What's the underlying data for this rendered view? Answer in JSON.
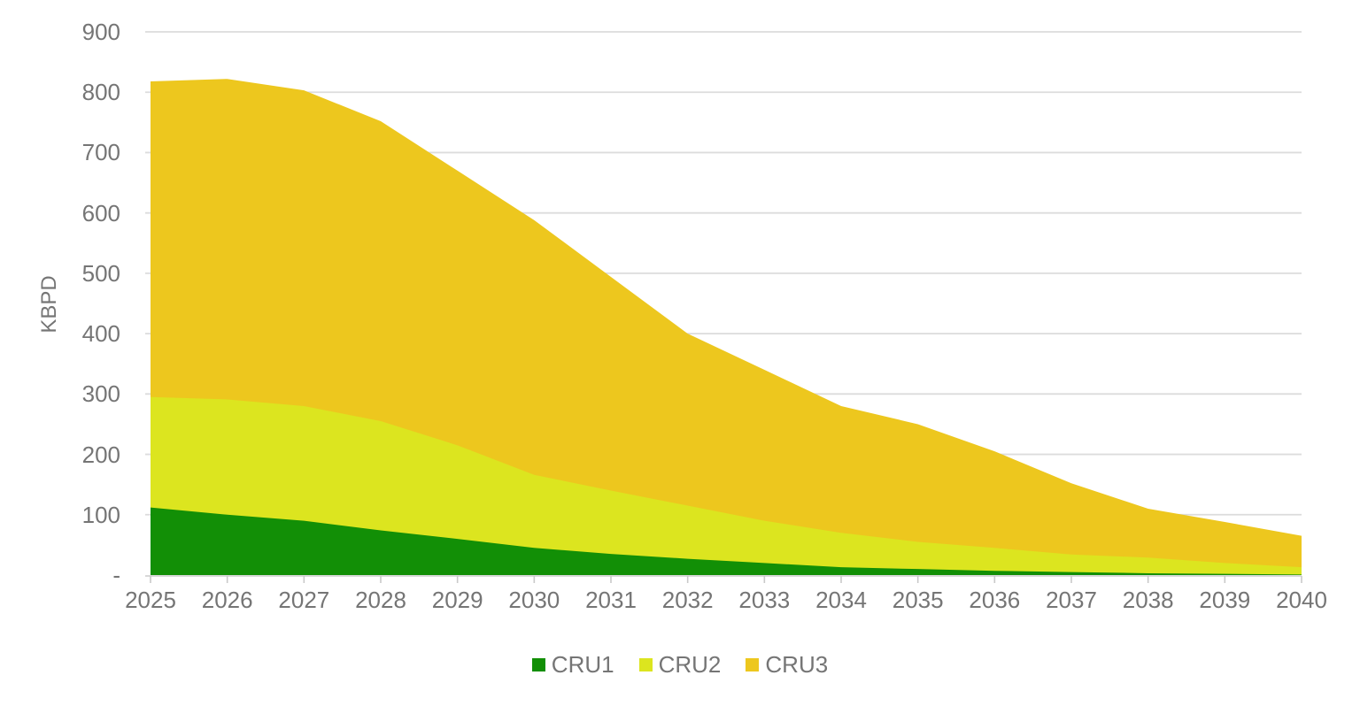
{
  "chart_data": {
    "type": "area",
    "stacked": true,
    "title": "",
    "xlabel": "",
    "ylabel": "KBPD",
    "ylim": [
      0,
      900
    ],
    "ytick_step": 100,
    "zero_tick_label": "-",
    "grid": true,
    "legend_position": "bottom",
    "categories": [
      "2025",
      "2026",
      "2027",
      "2028",
      "2029",
      "2030",
      "2031",
      "2032",
      "2033",
      "2034",
      "2035",
      "2036",
      "2037",
      "2038",
      "2039",
      "2040"
    ],
    "series": [
      {
        "name": "CRU1",
        "color": "#128F06",
        "values": [
          112,
          100,
          90,
          74,
          60,
          45,
          35,
          27,
          20,
          13,
          10,
          7,
          5,
          3,
          2,
          1
        ]
      },
      {
        "name": "CRU2",
        "color": "#DCE51F",
        "values": [
          183,
          191,
          190,
          181,
          155,
          121,
          105,
          88,
          70,
          57,
          45,
          38,
          29,
          26,
          18,
          12
        ]
      },
      {
        "name": "CRU3",
        "color": "#EDC71E",
        "values": [
          523,
          531,
          523,
          497,
          455,
          422,
          354,
          285,
          250,
          210,
          195,
          160,
          118,
          81,
          68,
          52
        ]
      }
    ],
    "stacked_totals": [
      818,
      822,
      803,
      752,
      670,
      588,
      494,
      400,
      340,
      280,
      250,
      205,
      152,
      110,
      88,
      65
    ],
    "colors": {
      "grid_line": "#DCDCDC",
      "axis_line": "#D2D2D2",
      "tick_mark": "#C9C9C9",
      "label_text": "#757575"
    }
  }
}
